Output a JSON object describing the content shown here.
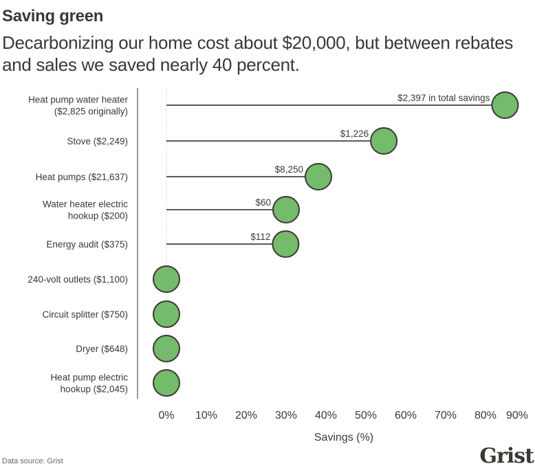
{
  "header": {
    "title": "Saving green",
    "subtitle": "Decarbonizing our home cost about $20,000, but between rebates and sales we saved nearly 40 percent."
  },
  "colors": {
    "dot_fill": "#74bb6b",
    "dot_stroke": "#3b3834",
    "line": "#5e5a55",
    "axis": "#999999",
    "text": "#3b3834"
  },
  "chart_data": {
    "type": "lollipop",
    "title": "Saving green",
    "subtitle": "Decarbonizing our home cost about $20,000, but between rebates and sales we saved nearly 40 percent.",
    "xlabel": "Savings (%)",
    "ylabel": "",
    "xlim": [
      0,
      90
    ],
    "x_ticks": [
      "0%",
      "10%",
      "20%",
      "30%",
      "40%",
      "50%",
      "60%",
      "70%",
      "80%",
      "90%"
    ],
    "x_tick_values": [
      0,
      10,
      20,
      30,
      40,
      50,
      60,
      70,
      80,
      90
    ],
    "categories": [
      [
        "Heat pump water heater",
        "($2,825 originally)"
      ],
      [
        "Stove ($2,249)"
      ],
      [
        "Heat pumps ($21,637)"
      ],
      [
        "Water heater electric",
        "hookup ($200)"
      ],
      [
        "Energy audit ($375)"
      ],
      [
        "240-volt outlets ($1,100)"
      ],
      [
        "Circuit splitter ($750)"
      ],
      [
        "Dryer ($648)"
      ],
      [
        "Heat pump electric",
        "hookup ($2,045)"
      ]
    ],
    "values": [
      84.9,
      54.5,
      38.1,
      30.0,
      29.9,
      0,
      0,
      0,
      0
    ],
    "data_labels": [
      "$2,397 in total savings",
      "$1,226",
      "$8,250",
      "$60",
      "$112",
      "",
      "",
      "",
      ""
    ],
    "grid": false,
    "legend": "none"
  },
  "footer": {
    "source": "Data source: Grist",
    "logo": "Grist"
  }
}
